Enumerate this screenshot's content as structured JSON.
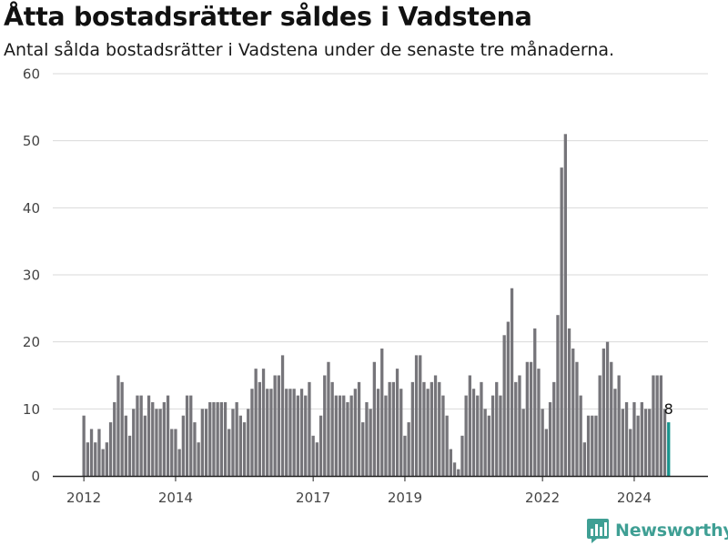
{
  "chart_data": {
    "type": "bar",
    "title": "Åtta bostadsrätter såldes i Vadstena",
    "subtitle": "Antal sålda bostadsrätter i Vadstena under de senaste tre månaderna.",
    "xlabel": "",
    "ylabel": "",
    "ylim": [
      0,
      60
    ],
    "yticks": [
      0,
      10,
      20,
      30,
      40,
      50,
      60
    ],
    "xticks": [
      "2012",
      "2014",
      "2017",
      "2019",
      "2022",
      "2024"
    ],
    "grid": true,
    "bar_color": "#76757a",
    "highlight_color": "#18948d",
    "highlight_label": "8",
    "start": "2012-01",
    "end": "2024-12",
    "values": [
      9,
      5,
      7,
      5,
      7,
      4,
      5,
      8,
      11,
      15,
      14,
      9,
      6,
      10,
      12,
      12,
      9,
      12,
      11,
      10,
      10,
      11,
      12,
      7,
      7,
      4,
      9,
      12,
      12,
      8,
      5,
      10,
      10,
      11,
      11,
      11,
      11,
      11,
      7,
      10,
      11,
      9,
      8,
      10,
      13,
      16,
      14,
      16,
      13,
      13,
      15,
      15,
      18,
      13,
      13,
      13,
      12,
      13,
      12,
      14,
      6,
      5,
      9,
      15,
      17,
      14,
      12,
      12,
      12,
      11,
      12,
      13,
      14,
      8,
      11,
      10,
      17,
      13,
      19,
      12,
      14,
      14,
      16,
      13,
      6,
      8,
      14,
      18,
      18,
      14,
      13,
      14,
      15,
      14,
      12,
      9,
      4,
      2,
      1,
      6,
      12,
      15,
      13,
      12,
      14,
      10,
      9,
      12,
      14,
      12,
      21,
      23,
      28,
      14,
      15,
      10,
      17,
      17,
      22,
      16,
      10,
      7,
      11,
      14,
      24,
      46,
      51,
      22,
      19,
      17,
      12,
      5,
      9,
      9,
      9,
      15,
      19,
      20,
      17,
      13,
      15,
      10,
      11,
      7,
      11,
      9,
      11,
      10,
      10,
      15,
      15,
      15,
      10,
      8
    ]
  },
  "brand": {
    "name": "Newsworthy",
    "color": "#3f9f94"
  }
}
